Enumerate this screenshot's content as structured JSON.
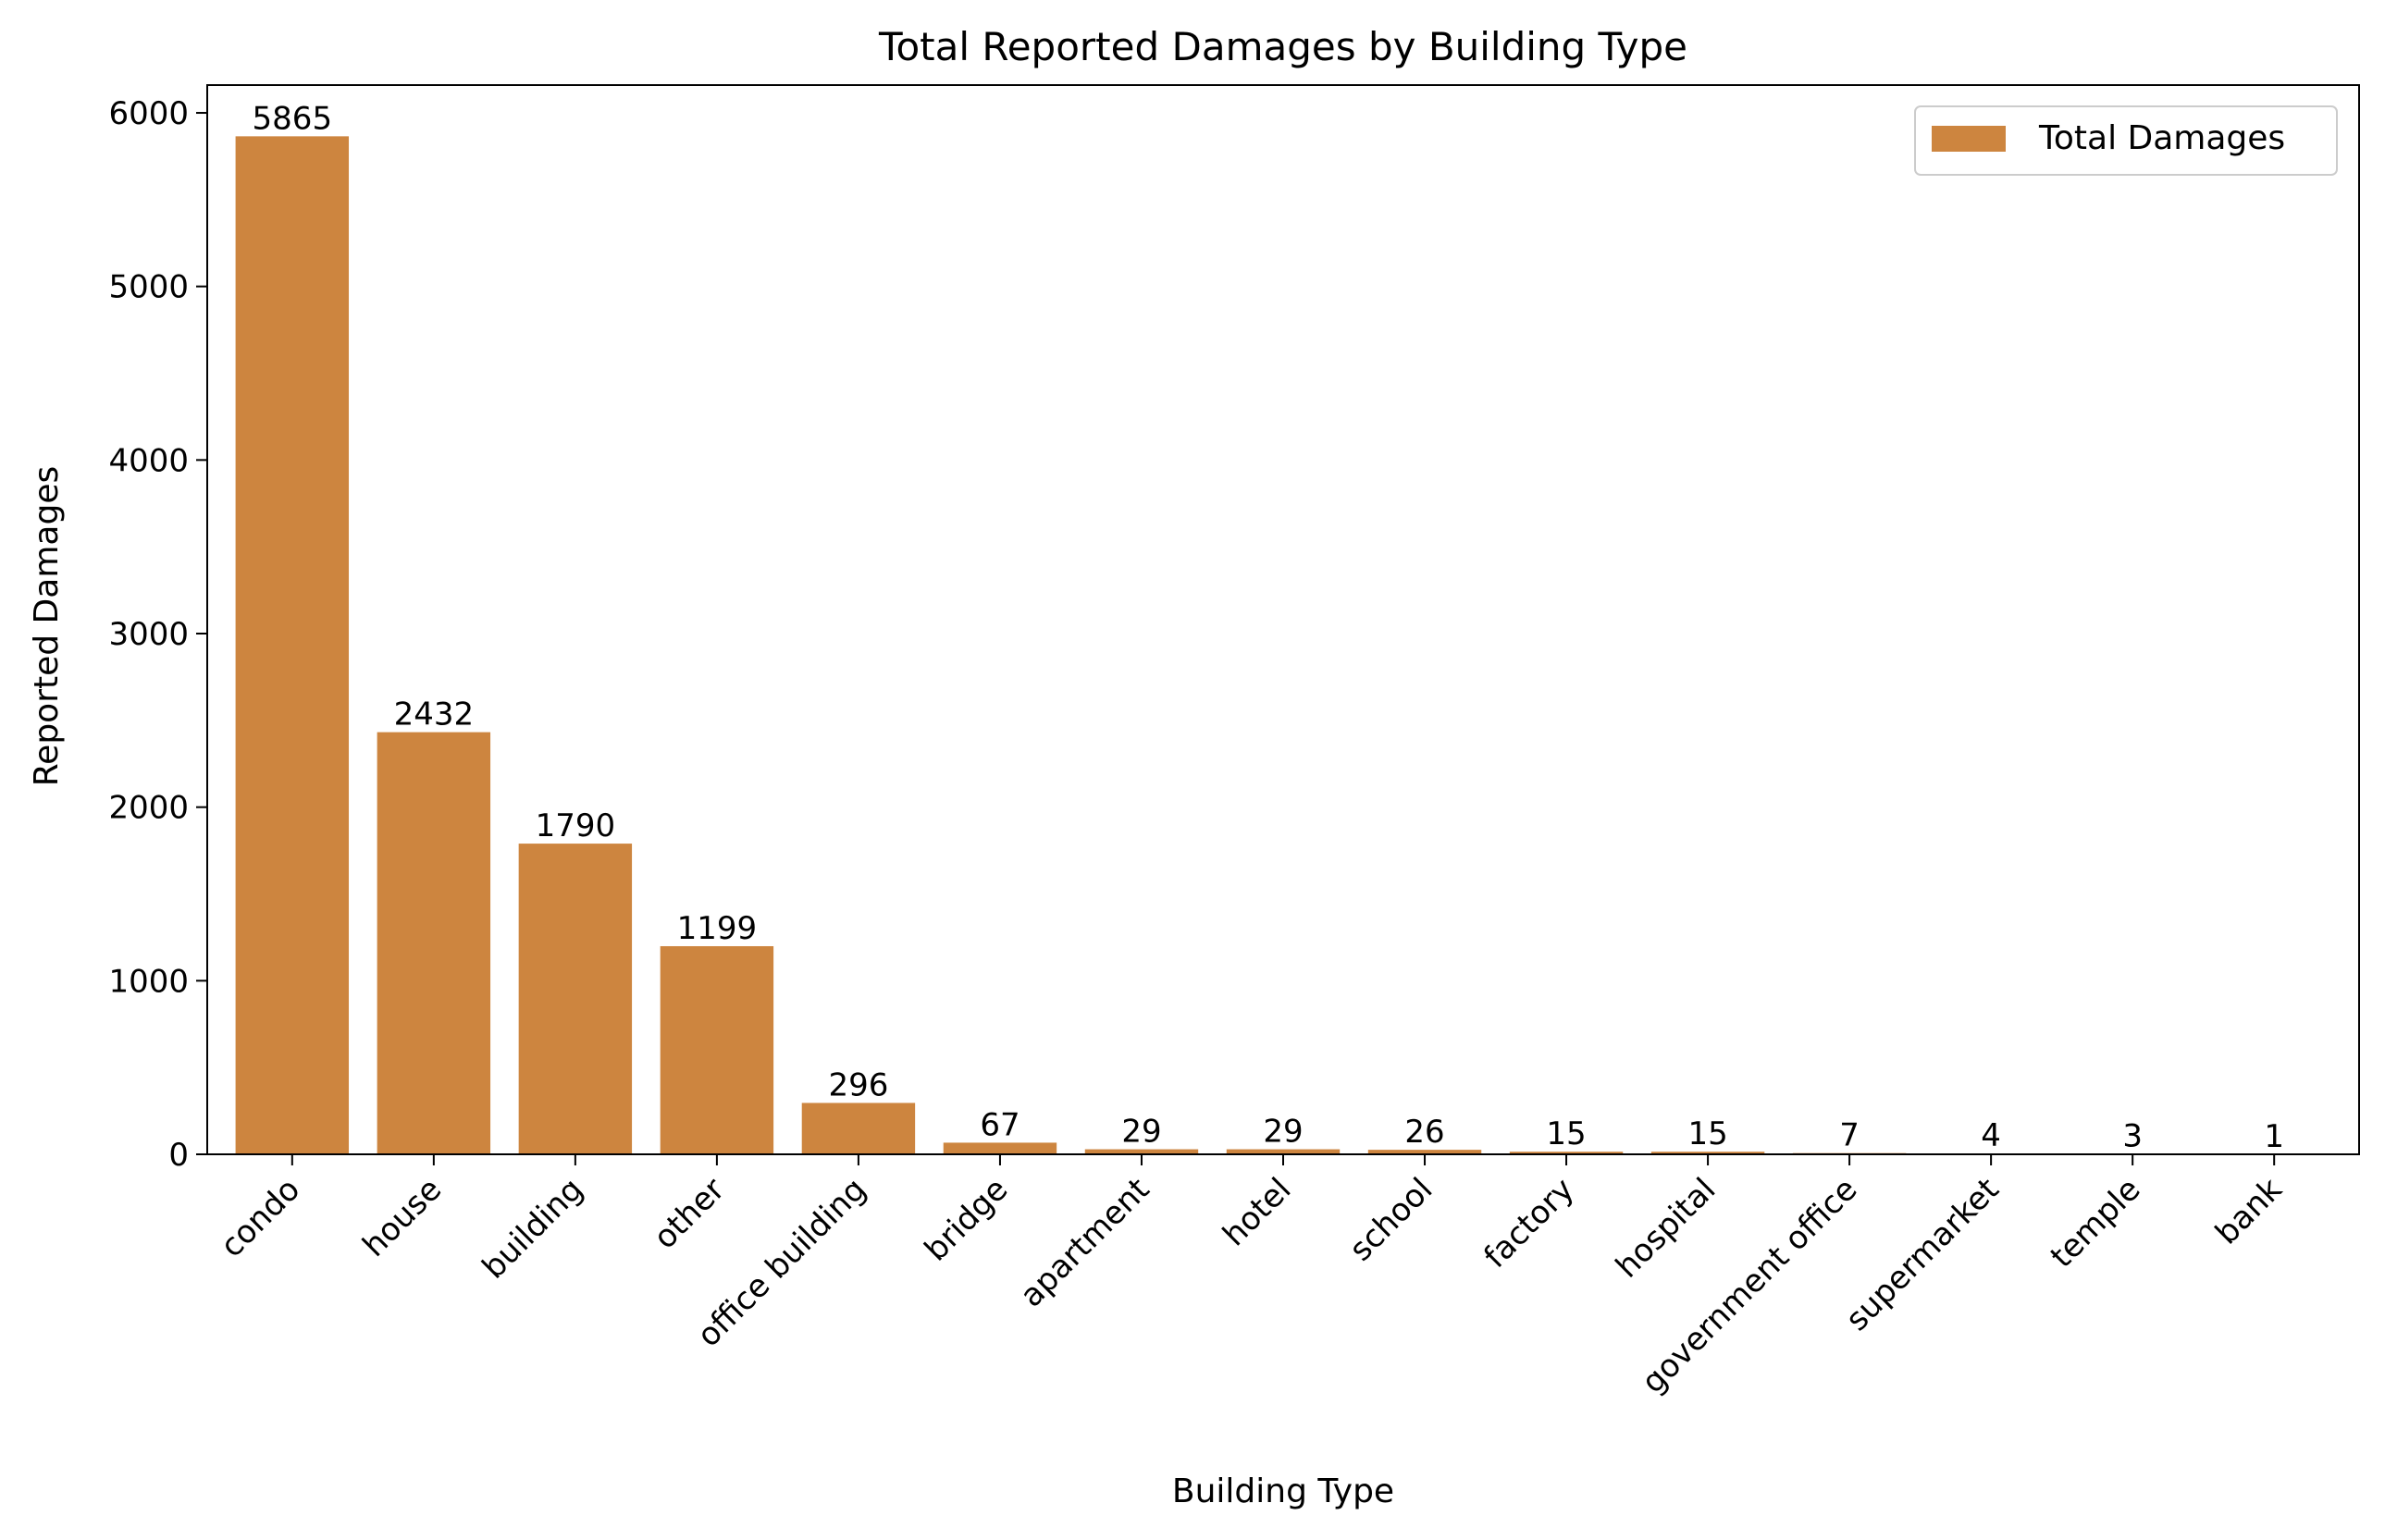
{
  "chart_data": {
    "type": "bar",
    "title": "Total Reported Damages by Building Type",
    "xlabel": "Building Type",
    "ylabel": "Reported Damages",
    "categories": [
      "condo",
      "house",
      "building",
      "other",
      "office building",
      "bridge",
      "apartment",
      "hotel",
      "school",
      "factory",
      "hospital",
      "government office",
      "supermarket",
      "temple",
      "bank"
    ],
    "series": [
      {
        "name": "Total Damages",
        "values": [
          5865,
          2432,
          1790,
          1199,
          296,
          67,
          29,
          29,
          26,
          15,
          15,
          7,
          4,
          3,
          1
        ]
      }
    ],
    "data_labels": [
      "5865",
      "2432",
      "1790",
      "1199",
      "296",
      "67",
      "29",
      "29",
      "26",
      "15",
      "15",
      "7",
      "4",
      "3",
      "1"
    ],
    "ylim": [
      0,
      6160
    ],
    "yticks": [
      0,
      1000,
      2000,
      3000,
      4000,
      5000,
      6000
    ],
    "ytick_labels": [
      "0",
      "1000",
      "2000",
      "3000",
      "4000",
      "5000",
      "6000"
    ],
    "grid": false,
    "legend": {
      "placement": "top-right",
      "label": "Total Damages"
    },
    "colors": {
      "bar": "#cd853f",
      "axis": "#000000",
      "background": "#ffffff"
    }
  }
}
